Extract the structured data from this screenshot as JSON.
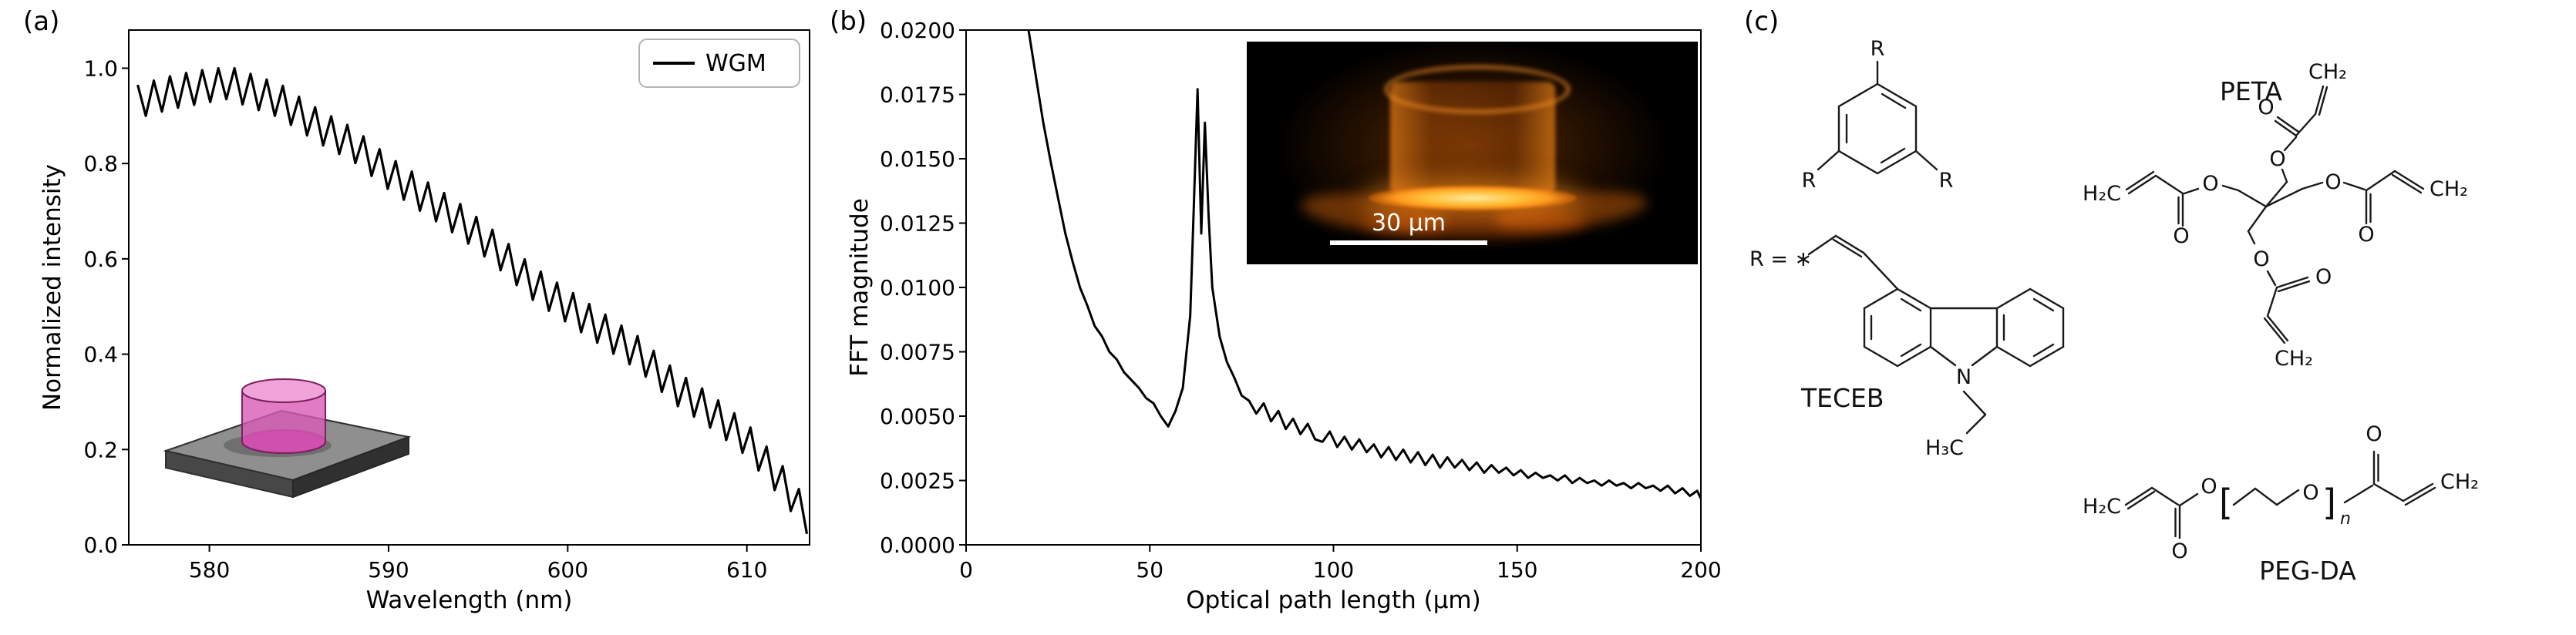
{
  "figure": {
    "panels": {
      "a": "(a)",
      "b": "(b)",
      "c": "(c)"
    },
    "background": "#ffffff"
  },
  "chart_data": [
    {
      "id": "wgm_spectrum",
      "type": "line",
      "title": "",
      "xlabel": "Wavelength (nm)",
      "ylabel": "Normalized intensity",
      "xlim": [
        575.5,
        613.5
      ],
      "ylim": [
        0,
        1.08
      ],
      "xticks": [
        580,
        590,
        600,
        610
      ],
      "xtick_labels": [
        "580",
        "590",
        "600",
        "610"
      ],
      "yticks": [
        0,
        0.2,
        0.4,
        0.6,
        0.8,
        1.0
      ],
      "ytick_labels": [
        "0.0",
        "0.2",
        "0.4",
        "0.6",
        "0.8",
        "1.0"
      ],
      "grid": false,
      "legend": {
        "position": "upper right",
        "entries": [
          {
            "label": "WGM",
            "color": "#000000"
          }
        ]
      },
      "series": [
        {
          "name": "WGM",
          "color": "#000000",
          "x_start": 576.0,
          "x_step": 0.45,
          "y": [
            0.965,
            0.9,
            0.974,
            0.909,
            0.983,
            0.917,
            0.99,
            0.923,
            0.996,
            0.929,
            1.0,
            0.935,
            1.0,
            0.924,
            0.988,
            0.912,
            0.976,
            0.9,
            0.963,
            0.881,
            0.94,
            0.859,
            0.918,
            0.838,
            0.899,
            0.82,
            0.881,
            0.801,
            0.857,
            0.774,
            0.83,
            0.747,
            0.805,
            0.724,
            0.783,
            0.701,
            0.76,
            0.679,
            0.738,
            0.656,
            0.715,
            0.632,
            0.688,
            0.605,
            0.661,
            0.576,
            0.631,
            0.545,
            0.599,
            0.514,
            0.573,
            0.491,
            0.55,
            0.469,
            0.528,
            0.446,
            0.505,
            0.424,
            0.483,
            0.401,
            0.46,
            0.379,
            0.438,
            0.353,
            0.407,
            0.321,
            0.376,
            0.291,
            0.35,
            0.269,
            0.328,
            0.246,
            0.303,
            0.22,
            0.276,
            0.193,
            0.246,
            0.156,
            0.206,
            0.115,
            0.165,
            0.071,
            0.117,
            0.023
          ]
        }
      ]
    },
    {
      "id": "fft_magnitude",
      "type": "line",
      "title": "",
      "xlabel": "Optical path length (µm)",
      "ylabel": "FFT magnitude",
      "xlim": [
        0,
        200
      ],
      "ylim": [
        0,
        0.02
      ],
      "xticks": [
        0,
        50,
        100,
        150,
        200
      ],
      "xtick_labels": [
        "0",
        "50",
        "100",
        "150",
        "200"
      ],
      "yticks": [
        0,
        0.0025,
        0.005,
        0.0075,
        0.01,
        0.0125,
        0.015,
        0.0175,
        0.02
      ],
      "ytick_labels": [
        "0.0000",
        "0.0025",
        "0.0050",
        "0.0075",
        "0.0100",
        "0.0125",
        "0.0150",
        "0.0175",
        "0.0200"
      ],
      "grid": false,
      "annotations": {
        "main_peak_optical_path_um": 63
      },
      "series": [
        {
          "name": "FFT",
          "color": "#000000",
          "x": [
            17,
            19,
            21,
            23,
            25,
            27,
            29,
            31,
            33,
            35,
            37,
            39,
            41,
            43,
            45,
            47,
            49,
            51,
            53,
            55,
            57,
            59,
            61,
            62,
            63,
            64,
            65,
            66,
            67,
            69,
            71,
            73,
            75,
            77,
            79,
            81,
            83,
            85,
            87,
            89,
            91,
            93,
            95,
            97,
            99,
            101,
            103,
            105,
            107,
            109,
            111,
            113,
            115,
            117,
            119,
            121,
            123,
            125,
            127,
            129,
            131,
            133,
            135,
            137,
            139,
            141,
            143,
            145,
            147,
            149,
            151,
            153,
            155,
            157,
            159,
            161,
            163,
            165,
            167,
            169,
            171,
            173,
            175,
            177,
            179,
            181,
            183,
            185,
            187,
            189,
            191,
            193,
            195,
            197,
            199,
            200
          ],
          "y": [
            0.02,
            0.0182,
            0.0164,
            0.0149,
            0.0135,
            0.0121,
            0.011,
            0.01,
            0.0093,
            0.0085,
            0.0081,
            0.0075,
            0.0072,
            0.0067,
            0.0064,
            0.0061,
            0.0057,
            0.0055,
            0.005,
            0.0046,
            0.0052,
            0.0061,
            0.0089,
            0.0132,
            0.0177,
            0.0121,
            0.0164,
            0.0128,
            0.01,
            0.0081,
            0.0071,
            0.0065,
            0.0058,
            0.0056,
            0.0051,
            0.0055,
            0.0048,
            0.0052,
            0.0045,
            0.0049,
            0.0043,
            0.0047,
            0.0041,
            0.004,
            0.0044,
            0.0038,
            0.0042,
            0.0037,
            0.0041,
            0.0036,
            0.0039,
            0.0034,
            0.0038,
            0.0033,
            0.0037,
            0.0032,
            0.0036,
            0.0031,
            0.0035,
            0.003,
            0.0034,
            0.003,
            0.0033,
            0.0029,
            0.0032,
            0.0028,
            0.0031,
            0.0028,
            0.003,
            0.0027,
            0.0029,
            0.0026,
            0.0028,
            0.0026,
            0.0027,
            0.0025,
            0.0027,
            0.0024,
            0.0026,
            0.0024,
            0.0025,
            0.0023,
            0.0025,
            0.0023,
            0.0024,
            0.0022,
            0.0024,
            0.0022,
            0.0023,
            0.0021,
            0.0023,
            0.002,
            0.0022,
            0.0019,
            0.0021,
            0.0018
          ]
        }
      ]
    }
  ],
  "inset_a": {
    "type": "3d-render",
    "object": "pink polymer microcylinder on gray substrate",
    "colors": {
      "cylinder": "#d85ab5",
      "cylinder_top": "#f0a3d8",
      "substrate_top": "#8f8f8f",
      "substrate_side": "#3a3a3a"
    }
  },
  "inset_b": {
    "type": "fluorescence-micrograph",
    "scale_bar_label": "30 µm",
    "colors": {
      "background": "#000000",
      "emission": "#ff9a1e",
      "scale_bar": "#ffffff"
    }
  },
  "panel_c": {
    "molecules": [
      {
        "name": "TECEB"
      },
      {
        "name": "PETA"
      },
      {
        "name": "PEG-DA"
      }
    ],
    "r_definition": "R = ∗",
    "atoms": {
      "R": "R",
      "O": "O",
      "N": "N",
      "n": "n",
      "H2C": "H₂C",
      "CH2": "CH₂",
      "H3C": "H₃C",
      "bracket_left": "[",
      "bracket_right": "]"
    }
  }
}
